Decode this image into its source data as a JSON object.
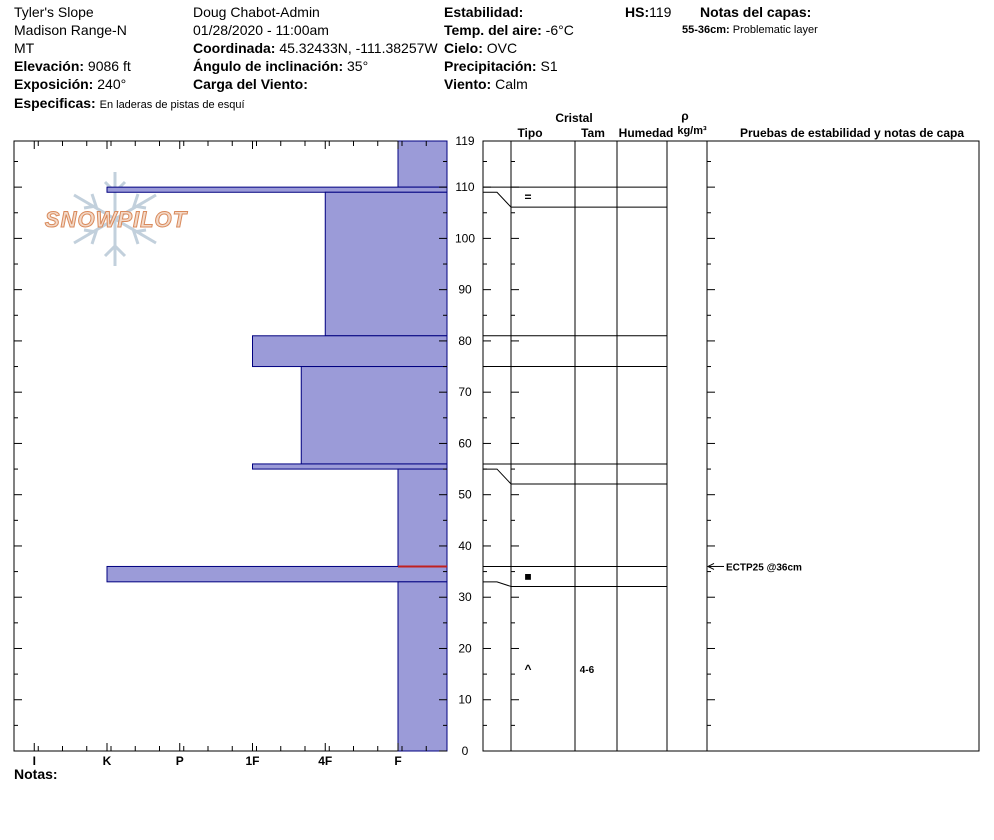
{
  "header": {
    "location": "Tyler's Slope",
    "range": "Madison Range-N",
    "state": "MT",
    "elevation_label": "Elevación:",
    "elevation_value": "9086 ft",
    "aspect_label": "Exposición:",
    "aspect_value": "240°",
    "specifics_label": "Especificas:",
    "specifics_value": "En laderas de pistas de esquí",
    "observer": "Doug Chabot-Admin",
    "datetime": "01/28/2020 - 11:00am",
    "coord_label": "Coordinada:",
    "coord_value": "45.32433N, -111.38257W",
    "slope_label": "Ángulo de inclinación:",
    "slope_value": "35°",
    "wind_load_label": "Carga del Viento:",
    "wind_load_value": "",
    "stability_label": "Estabilidad:",
    "stability_value": "",
    "air_temp_label": "Temp. del aire:",
    "air_temp_value": "-6°C",
    "sky_label": "Cielo:",
    "sky_value": "OVC",
    "precip_label": "Precipitación:",
    "precip_value": "S1",
    "wind_label": "Viento:",
    "wind_value": "Calm",
    "hs_label": "HS:",
    "hs_value": "119",
    "layer_notes_title": "Notas del capas:",
    "layer_note_range": "55-36cm:",
    "layer_note_text": "Problematic layer"
  },
  "footer": {
    "notes_label": "Notas:"
  },
  "logo": {
    "text": "SNOWPILOT",
    "icon": "snowflake-icon"
  },
  "table_headers": {
    "cristal": "Cristal",
    "tipo": "Tipo",
    "tam": "Tam",
    "humedad": "Humedad",
    "rho": "ρ",
    "density_unit": "kg/m³",
    "tests": "Pruebas de estabilidad y notas de capa"
  },
  "chart_data": {
    "type": "bar",
    "orientation": "horizontal",
    "y_axis": {
      "range": [
        0,
        119
      ],
      "ticks": [
        0,
        10,
        20,
        30,
        40,
        50,
        60,
        70,
        80,
        90,
        100,
        110,
        119
      ],
      "unit": "cm"
    },
    "x_axis": {
      "categories": [
        "I",
        "K",
        "P",
        "1F",
        "4F",
        "F"
      ]
    },
    "hardness_scale": {
      "F": 1,
      "4F": 2,
      "1F": 3,
      "P": 4,
      "K": 5,
      "I": 6
    },
    "layers": [
      {
        "top": 119,
        "bottom": 110,
        "hardness": 1
      },
      {
        "top": 110,
        "bottom": 109,
        "hardness": 5
      },
      {
        "top": 109,
        "bottom": 81,
        "hardness": 2
      },
      {
        "top": 81,
        "bottom": 75,
        "hardness": 3
      },
      {
        "top": 75,
        "bottom": 56,
        "hardness": 2.33
      },
      {
        "top": 56,
        "bottom": 55,
        "hardness": 3
      },
      {
        "top": 55,
        "bottom": 36,
        "hardness": 1
      },
      {
        "top": 36,
        "bottom": 33,
        "hardness": 5
      },
      {
        "top": 33,
        "bottom": 0,
        "hardness": 1
      }
    ],
    "problem_layer_line": 36,
    "layer_table_boundaries": [
      119,
      110,
      109,
      81,
      75,
      56,
      55,
      36,
      33
    ],
    "crystals": [
      {
        "depth": 109.5,
        "symbol": "=",
        "size": ""
      },
      {
        "depth": 34.5,
        "symbol": "■",
        "size": ""
      },
      {
        "depth": 16,
        "symbol": "^",
        "size": "4-6"
      }
    ],
    "tests": [
      {
        "depth": 36,
        "text": "ECTP25 @36cm"
      }
    ]
  }
}
